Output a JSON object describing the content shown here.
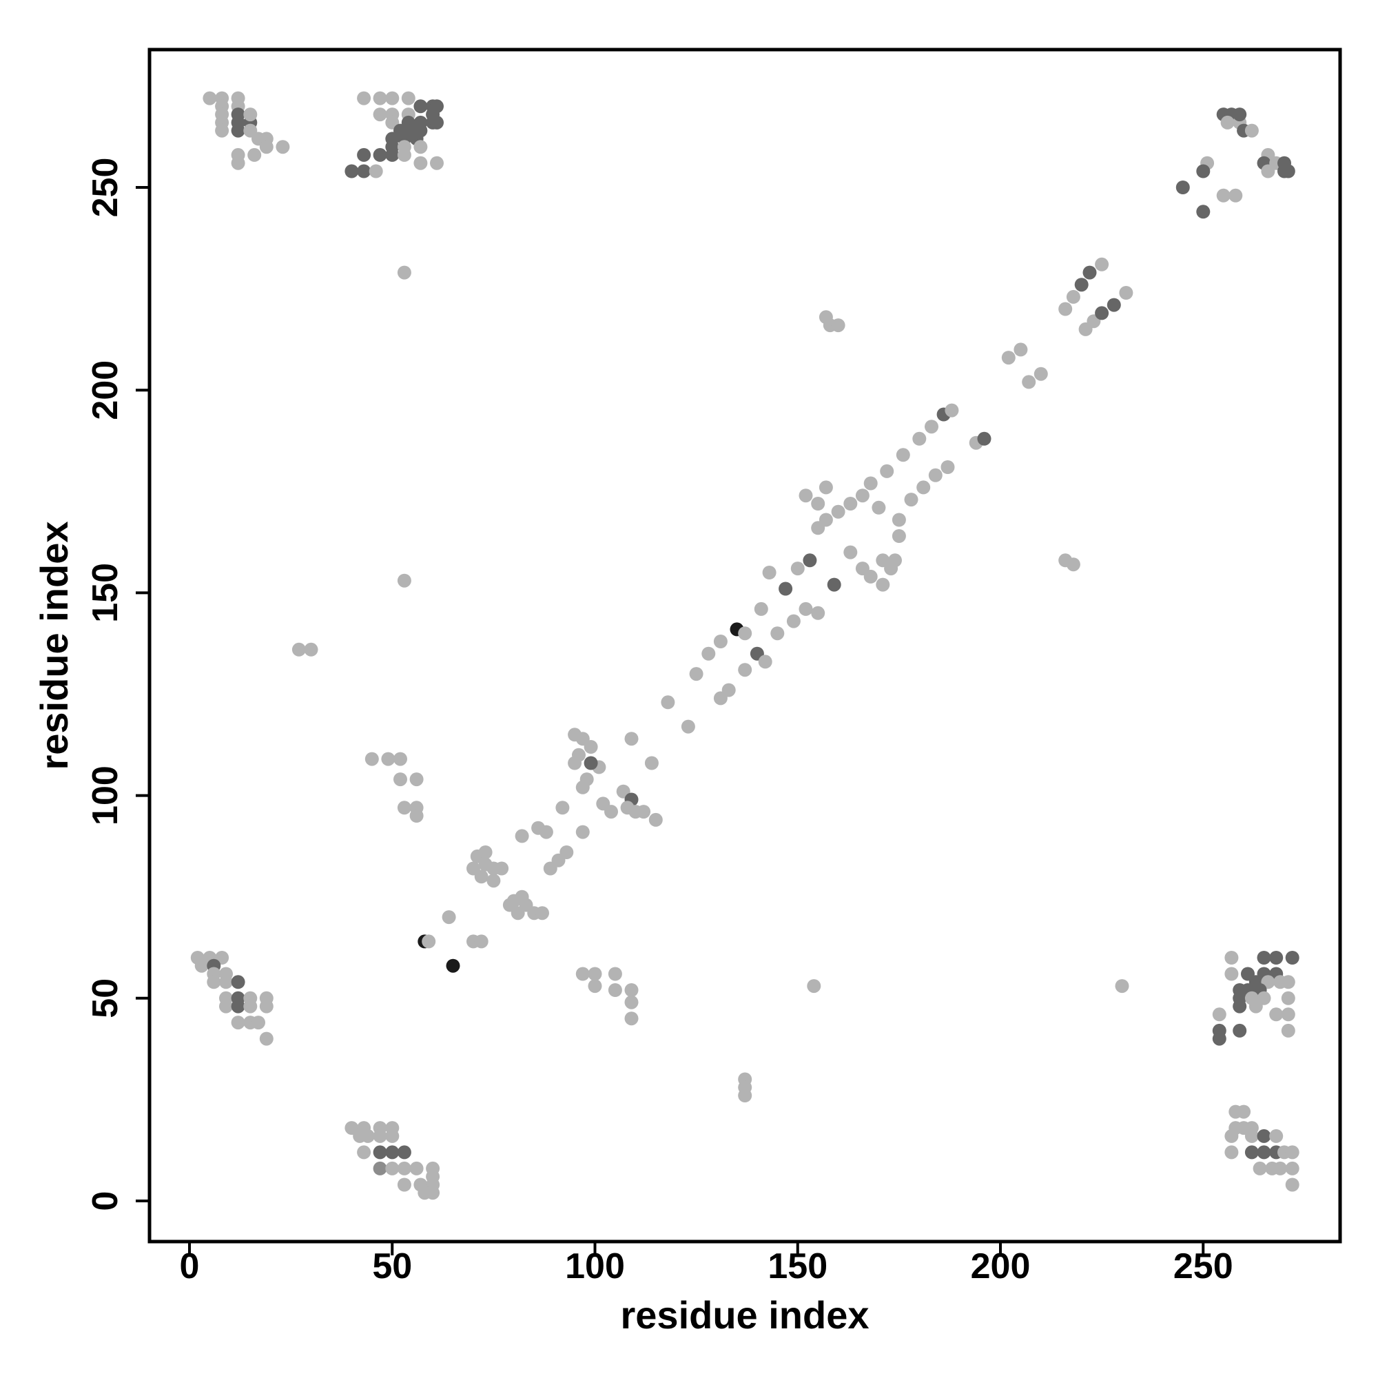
{
  "chart_data": {
    "type": "scatter",
    "title": "",
    "xlabel": "residue index",
    "ylabel": "residue index",
    "xlim": [
      -10,
      284
    ],
    "ylim": [
      -10,
      284
    ],
    "xticks": [
      0,
      50,
      100,
      150,
      200,
      250
    ],
    "yticks": [
      0,
      50,
      100,
      150,
      200,
      250
    ],
    "grid": false,
    "legend": "none",
    "palette": {
      "light": "#b3b3b3",
      "mid": "#8c8c8c",
      "dark": "#666666",
      "black": "#1a1a1a"
    },
    "points": [
      [
        5,
        272,
        "light"
      ],
      [
        8,
        272,
        "light"
      ],
      [
        12,
        272,
        "light"
      ],
      [
        8,
        270,
        "light"
      ],
      [
        12,
        270,
        "light"
      ],
      [
        8,
        268,
        "light"
      ],
      [
        12,
        268,
        "dark"
      ],
      [
        8,
        266,
        "light"
      ],
      [
        12,
        266,
        "dark"
      ],
      [
        15,
        266,
        "dark"
      ],
      [
        15,
        268,
        "light"
      ],
      [
        8,
        264,
        "light"
      ],
      [
        12,
        264,
        "dark"
      ],
      [
        15,
        264,
        "light"
      ],
      [
        17,
        262,
        "light"
      ],
      [
        19,
        262,
        "light"
      ],
      [
        12,
        258,
        "light"
      ],
      [
        16,
        258,
        "light"
      ],
      [
        19,
        260,
        "light"
      ],
      [
        23,
        260,
        "light"
      ],
      [
        12,
        256,
        "light"
      ],
      [
        43,
        272,
        "light"
      ],
      [
        47,
        272,
        "light"
      ],
      [
        50,
        272,
        "light"
      ],
      [
        54,
        272,
        "light"
      ],
      [
        47,
        268,
        "light"
      ],
      [
        50,
        268,
        "light"
      ],
      [
        54,
        268,
        "light"
      ],
      [
        57,
        270,
        "dark"
      ],
      [
        60,
        270,
        "dark"
      ],
      [
        60,
        268,
        "dark"
      ],
      [
        57,
        266,
        "dark"
      ],
      [
        60,
        266,
        "dark"
      ],
      [
        54,
        266,
        "dark"
      ],
      [
        50,
        266,
        "light"
      ],
      [
        52,
        264,
        "dark"
      ],
      [
        55,
        264,
        "dark"
      ],
      [
        57,
        264,
        "dark"
      ],
      [
        50,
        262,
        "dark"
      ],
      [
        53,
        262,
        "dark"
      ],
      [
        56,
        262,
        "dark"
      ],
      [
        50,
        260,
        "dark"
      ],
      [
        53,
        260,
        "light"
      ],
      [
        57,
        260,
        "light"
      ],
      [
        47,
        258,
        "dark"
      ],
      [
        50,
        258,
        "dark"
      ],
      [
        43,
        258,
        "dark"
      ],
      [
        40,
        254,
        "dark"
      ],
      [
        43,
        254,
        "dark"
      ],
      [
        46,
        254,
        "light"
      ],
      [
        53,
        258,
        "light"
      ],
      [
        57,
        256,
        "light"
      ],
      [
        61,
        256,
        "light"
      ],
      [
        61,
        270,
        "dark"
      ],
      [
        61,
        266,
        "dark"
      ],
      [
        255,
        268,
        "dark"
      ],
      [
        257,
        268,
        "dark"
      ],
      [
        259,
        266,
        "light"
      ],
      [
        260,
        264,
        "dark"
      ],
      [
        262,
        264,
        "light"
      ],
      [
        256,
        266,
        "light"
      ],
      [
        259,
        268,
        "dark"
      ],
      [
        266,
        258,
        "light"
      ],
      [
        265,
        256,
        "dark"
      ],
      [
        268,
        256,
        "light"
      ],
      [
        270,
        256,
        "dark"
      ],
      [
        270,
        254,
        "dark"
      ],
      [
        271,
        254,
        "dark"
      ],
      [
        266,
        254,
        "light"
      ],
      [
        251,
        256,
        "light"
      ],
      [
        250,
        254,
        "dark"
      ],
      [
        245,
        250,
        "dark"
      ],
      [
        255,
        248,
        "light"
      ],
      [
        258,
        248,
        "light"
      ],
      [
        250,
        244,
        "dark"
      ],
      [
        2,
        60,
        "light"
      ],
      [
        5,
        60,
        "light"
      ],
      [
        8,
        60,
        "light"
      ],
      [
        3,
        58,
        "light"
      ],
      [
        6,
        58,
        "dark"
      ],
      [
        6,
        56,
        "light"
      ],
      [
        9,
        56,
        "light"
      ],
      [
        6,
        54,
        "light"
      ],
      [
        9,
        54,
        "light"
      ],
      [
        12,
        54,
        "dark"
      ],
      [
        9,
        50,
        "light"
      ],
      [
        12,
        50,
        "dark"
      ],
      [
        15,
        50,
        "light"
      ],
      [
        9,
        48,
        "light"
      ],
      [
        12,
        48,
        "dark"
      ],
      [
        15,
        48,
        "light"
      ],
      [
        19,
        48,
        "light"
      ],
      [
        19,
        50,
        "light"
      ],
      [
        12,
        44,
        "light"
      ],
      [
        15,
        44,
        "light"
      ],
      [
        17,
        44,
        "light"
      ],
      [
        19,
        40,
        "light"
      ],
      [
        40,
        18,
        "light"
      ],
      [
        43,
        18,
        "light"
      ],
      [
        47,
        18,
        "light"
      ],
      [
        50,
        18,
        "light"
      ],
      [
        42,
        16,
        "light"
      ],
      [
        44,
        16,
        "light"
      ],
      [
        47,
        16,
        "light"
      ],
      [
        50,
        16,
        "light"
      ],
      [
        43,
        12,
        "light"
      ],
      [
        47,
        12,
        "dark"
      ],
      [
        50,
        12,
        "dark"
      ],
      [
        53,
        12,
        "dark"
      ],
      [
        47,
        8,
        "mid"
      ],
      [
        50,
        8,
        "light"
      ],
      [
        53,
        8,
        "light"
      ],
      [
        56,
        8,
        "light"
      ],
      [
        53,
        4,
        "light"
      ],
      [
        57,
        4,
        "light"
      ],
      [
        60,
        4,
        "light"
      ],
      [
        60,
        6,
        "light"
      ],
      [
        60,
        8,
        "light"
      ],
      [
        58,
        2,
        "light"
      ],
      [
        60,
        2,
        "light"
      ],
      [
        257,
        60,
        "light"
      ],
      [
        265,
        60,
        "dark"
      ],
      [
        268,
        60,
        "dark"
      ],
      [
        272,
        60,
        "dark"
      ],
      [
        257,
        56,
        "light"
      ],
      [
        261,
        56,
        "dark"
      ],
      [
        265,
        56,
        "dark"
      ],
      [
        268,
        56,
        "dark"
      ],
      [
        263,
        54,
        "dark"
      ],
      [
        266,
        54,
        "light"
      ],
      [
        269,
        54,
        "light"
      ],
      [
        271,
        54,
        "light"
      ],
      [
        259,
        52,
        "dark"
      ],
      [
        261,
        52,
        "dark"
      ],
      [
        264,
        52,
        "dark"
      ],
      [
        259,
        50,
        "dark"
      ],
      [
        262,
        50,
        "light"
      ],
      [
        265,
        50,
        "light"
      ],
      [
        271,
        50,
        "light"
      ],
      [
        259,
        48,
        "dark"
      ],
      [
        263,
        48,
        "light"
      ],
      [
        268,
        46,
        "light"
      ],
      [
        271,
        46,
        "light"
      ],
      [
        254,
        46,
        "light"
      ],
      [
        254,
        42,
        "dark"
      ],
      [
        259,
        42,
        "dark"
      ],
      [
        254,
        40,
        "dark"
      ],
      [
        271,
        42,
        "light"
      ],
      [
        258,
        22,
        "light"
      ],
      [
        260,
        22,
        "light"
      ],
      [
        258,
        18,
        "light"
      ],
      [
        262,
        18,
        "light"
      ],
      [
        260,
        18,
        "light"
      ],
      [
        257,
        16,
        "light"
      ],
      [
        262,
        16,
        "light"
      ],
      [
        265,
        16,
        "dark"
      ],
      [
        268,
        16,
        "light"
      ],
      [
        257,
        12,
        "light"
      ],
      [
        262,
        12,
        "dark"
      ],
      [
        265,
        12,
        "dark"
      ],
      [
        268,
        12,
        "dark"
      ],
      [
        270,
        12,
        "light"
      ],
      [
        272,
        12,
        "light"
      ],
      [
        264,
        8,
        "light"
      ],
      [
        267,
        8,
        "light"
      ],
      [
        269,
        8,
        "light"
      ],
      [
        272,
        8,
        "light"
      ],
      [
        272,
        4,
        "light"
      ],
      [
        53,
        229,
        "light"
      ],
      [
        53,
        153,
        "light"
      ],
      [
        27,
        136,
        "light"
      ],
      [
        30,
        136,
        "light"
      ],
      [
        45,
        109,
        "light"
      ],
      [
        49,
        109,
        "light"
      ],
      [
        52,
        109,
        "light"
      ],
      [
        52,
        104,
        "light"
      ],
      [
        56,
        104,
        "light"
      ],
      [
        53,
        97,
        "light"
      ],
      [
        56,
        97,
        "light"
      ],
      [
        56,
        95,
        "light"
      ],
      [
        97,
        56,
        "light"
      ],
      [
        100,
        56,
        "light"
      ],
      [
        100,
        53,
        "light"
      ],
      [
        105,
        56,
        "light"
      ],
      [
        105,
        52,
        "light"
      ],
      [
        109,
        52,
        "light"
      ],
      [
        109,
        49,
        "light"
      ],
      [
        109,
        45,
        "light"
      ],
      [
        154,
        53,
        "light"
      ],
      [
        230,
        53,
        "light"
      ],
      [
        137,
        30,
        "light"
      ],
      [
        137,
        28,
        "light"
      ],
      [
        137,
        26,
        "light"
      ],
      [
        158,
        216,
        "light"
      ],
      [
        160,
        216,
        "light"
      ],
      [
        157,
        218,
        "light"
      ],
      [
        216,
        158,
        "light"
      ],
      [
        218,
        157,
        "light"
      ],
      [
        58,
        64,
        "black"
      ],
      [
        59,
        64,
        "light"
      ],
      [
        65,
        58,
        "black"
      ],
      [
        64,
        70,
        "light"
      ],
      [
        70,
        64,
        "light"
      ],
      [
        72,
        64,
        "light"
      ],
      [
        71,
        85,
        "light"
      ],
      [
        73,
        83,
        "light"
      ],
      [
        75,
        82,
        "light"
      ],
      [
        72,
        80,
        "light"
      ],
      [
        75,
        79,
        "light"
      ],
      [
        77,
        82,
        "light"
      ],
      [
        70,
        82,
        "light"
      ],
      [
        73,
        86,
        "light"
      ],
      [
        79,
        73,
        "light"
      ],
      [
        81,
        71,
        "light"
      ],
      [
        83,
        73,
        "light"
      ],
      [
        82,
        75,
        "light"
      ],
      [
        85,
        71,
        "light"
      ],
      [
        87,
        71,
        "light"
      ],
      [
        80,
        74,
        "light"
      ],
      [
        82,
        90,
        "light"
      ],
      [
        86,
        92,
        "light"
      ],
      [
        88,
        91,
        "light"
      ],
      [
        92,
        97,
        "light"
      ],
      [
        89,
        82,
        "light"
      ],
      [
        91,
        84,
        "light"
      ],
      [
        93,
        86,
        "light"
      ],
      [
        97,
        91,
        "light"
      ],
      [
        95,
        115,
        "light"
      ],
      [
        97,
        114,
        "light"
      ],
      [
        99,
        112,
        "light"
      ],
      [
        95,
        108,
        "light"
      ],
      [
        98,
        104,
        "light"
      ],
      [
        101,
        107,
        "light"
      ],
      [
        99,
        108,
        "dark"
      ],
      [
        97,
        102,
        "light"
      ],
      [
        96,
        110,
        "light"
      ],
      [
        102,
        98,
        "light"
      ],
      [
        104,
        96,
        "light"
      ],
      [
        107,
        101,
        "light"
      ],
      [
        109,
        99,
        "dark"
      ],
      [
        112,
        96,
        "light"
      ],
      [
        115,
        94,
        "light"
      ],
      [
        110,
        96,
        "light"
      ],
      [
        108,
        97,
        "light"
      ],
      [
        114,
        108,
        "light"
      ],
      [
        109,
        114,
        "light"
      ],
      [
        118,
        123,
        "light"
      ],
      [
        123,
        117,
        "light"
      ],
      [
        125,
        130,
        "light"
      ],
      [
        128,
        135,
        "light"
      ],
      [
        131,
        138,
        "light"
      ],
      [
        135,
        141,
        "black"
      ],
      [
        137,
        140,
        "light"
      ],
      [
        141,
        146,
        "light"
      ],
      [
        143,
        155,
        "light"
      ],
      [
        147,
        151,
        "dark"
      ],
      [
        150,
        156,
        "light"
      ],
      [
        131,
        124,
        "light"
      ],
      [
        133,
        126,
        "light"
      ],
      [
        137,
        131,
        "light"
      ],
      [
        140,
        135,
        "dark"
      ],
      [
        142,
        133,
        "light"
      ],
      [
        145,
        140,
        "light"
      ],
      [
        149,
        143,
        "light"
      ],
      [
        152,
        146,
        "light"
      ],
      [
        155,
        145,
        "light"
      ],
      [
        159,
        152,
        "dark"
      ],
      [
        153,
        158,
        "dark"
      ],
      [
        152,
        174,
        "light"
      ],
      [
        155,
        172,
        "light"
      ],
      [
        157,
        176,
        "light"
      ],
      [
        157,
        168,
        "light"
      ],
      [
        155,
        166,
        "light"
      ],
      [
        160,
        170,
        "light"
      ],
      [
        163,
        172,
        "light"
      ],
      [
        166,
        174,
        "light"
      ],
      [
        168,
        177,
        "light"
      ],
      [
        170,
        171,
        "light"
      ],
      [
        163,
        160,
        "light"
      ],
      [
        166,
        156,
        "light"
      ],
      [
        168,
        154,
        "light"
      ],
      [
        171,
        152,
        "light"
      ],
      [
        173,
        156,
        "light"
      ],
      [
        174,
        158,
        "light"
      ],
      [
        171,
        158,
        "light"
      ],
      [
        175,
        164,
        "light"
      ],
      [
        175,
        168,
        "light"
      ],
      [
        172,
        180,
        "light"
      ],
      [
        176,
        184,
        "light"
      ],
      [
        180,
        188,
        "light"
      ],
      [
        183,
        191,
        "light"
      ],
      [
        186,
        194,
        "dark"
      ],
      [
        188,
        195,
        "light"
      ],
      [
        178,
        173,
        "light"
      ],
      [
        181,
        176,
        "light"
      ],
      [
        184,
        179,
        "light"
      ],
      [
        187,
        181,
        "light"
      ],
      [
        194,
        187,
        "light"
      ],
      [
        196,
        188,
        "dark"
      ],
      [
        202,
        208,
        "light"
      ],
      [
        205,
        210,
        "light"
      ],
      [
        207,
        202,
        "light"
      ],
      [
        210,
        204,
        "light"
      ],
      [
        216,
        220,
        "light"
      ],
      [
        218,
        223,
        "light"
      ],
      [
        220,
        226,
        "dark"
      ],
      [
        222,
        229,
        "dark"
      ],
      [
        225,
        231,
        "light"
      ],
      [
        221,
        215,
        "light"
      ],
      [
        223,
        217,
        "light"
      ],
      [
        225,
        219,
        "dark"
      ],
      [
        228,
        221,
        "dark"
      ],
      [
        231,
        224,
        "light"
      ]
    ]
  }
}
